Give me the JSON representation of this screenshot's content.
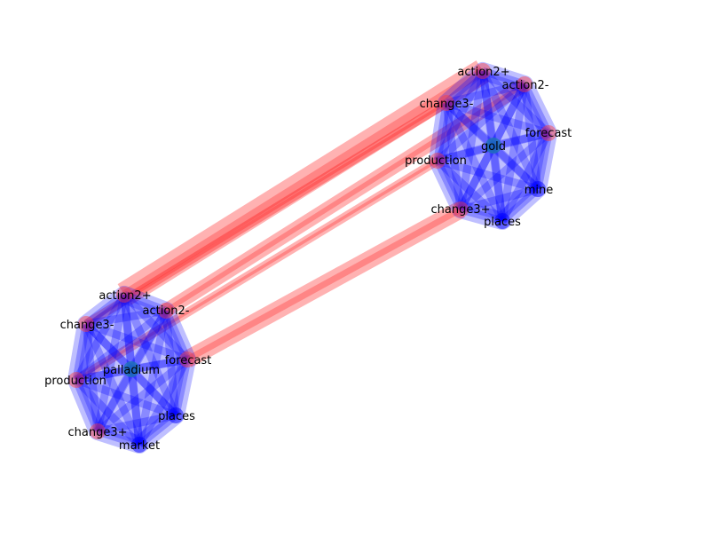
{
  "clusters": [
    {
      "id": "palladium",
      "center_label": "palladium",
      "nodes": [
        {
          "id": "action2+",
          "label": "action2+",
          "marked": true
        },
        {
          "id": "action2-",
          "label": "action2-",
          "marked": true
        },
        {
          "id": "change3-",
          "label": "change3-",
          "marked": true
        },
        {
          "id": "forecast",
          "label": "forecast",
          "marked": true
        },
        {
          "id": "production",
          "label": "production",
          "marked": true
        },
        {
          "id": "places",
          "label": "places",
          "marked": false
        },
        {
          "id": "change3+",
          "label": "change3+",
          "marked": true
        },
        {
          "id": "market",
          "label": "market",
          "marked": false
        }
      ]
    },
    {
      "id": "gold",
      "center_label": "gold",
      "nodes": [
        {
          "id": "action2+",
          "label": "action2+",
          "marked": true
        },
        {
          "id": "action2-",
          "label": "action2-",
          "marked": true
        },
        {
          "id": "change3-",
          "label": "change3-",
          "marked": true
        },
        {
          "id": "forecast",
          "label": "forecast",
          "marked": true
        },
        {
          "id": "production",
          "label": "production",
          "marked": true
        },
        {
          "id": "mine",
          "label": "mine",
          "marked": false
        },
        {
          "id": "change3+",
          "label": "change3+",
          "marked": true
        },
        {
          "id": "places",
          "label": "places",
          "marked": false
        }
      ]
    }
  ],
  "links": [
    {
      "from": "action2+",
      "to": "action2+"
    },
    {
      "from": "change3-",
      "to": "change3-"
    },
    {
      "from": "action2-",
      "to": "action2-"
    },
    {
      "from": "production",
      "to": "production"
    },
    {
      "from": "forecast",
      "to": "change3+"
    }
  ],
  "colors": {
    "cluster_fill": "#0000ff",
    "link": "#ff0000",
    "marked_node": "#ff3b3b",
    "plain_node": "#0000ff",
    "center_node": "#1f77b4"
  }
}
